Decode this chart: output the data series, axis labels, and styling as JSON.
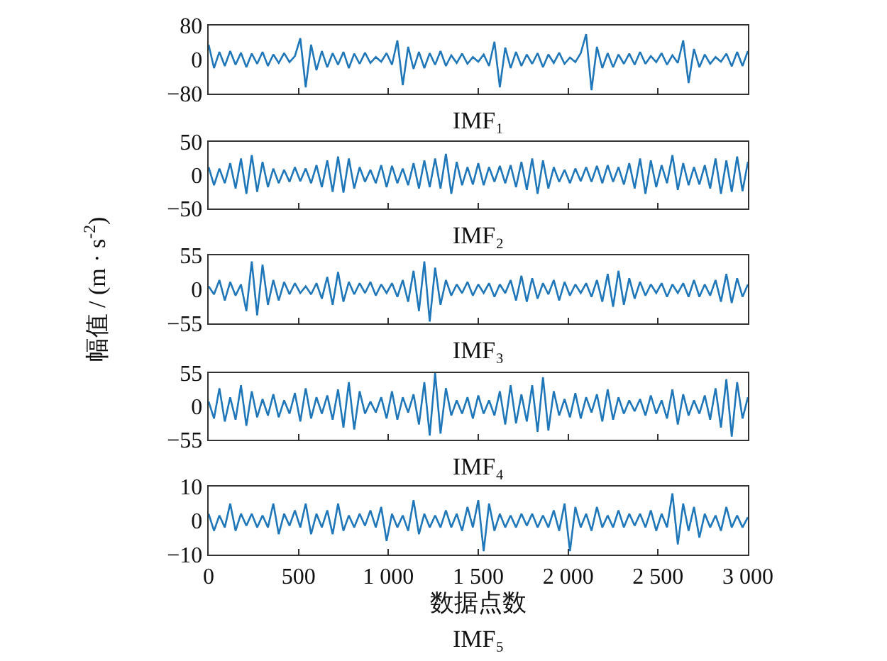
{
  "chart_data": [
    {
      "type": "line",
      "xlabel": "IMF₁",
      "ylabel": null,
      "color": "#1f77b9",
      "tick_labels": "y",
      "xlim": [
        0,
        3000
      ],
      "ylim": [
        -80,
        80
      ],
      "yticks": [
        -80,
        0,
        80
      ],
      "xticks": [
        {
          "value": 0,
          "label": null
        },
        {
          "value": 500,
          "label": null
        },
        {
          "value": 1000,
          "label": null
        },
        {
          "value": 1500,
          "label": null
        },
        {
          "value": 2000,
          "label": null
        },
        {
          "value": 2500,
          "label": null
        },
        {
          "value": 3000,
          "label": null
        }
      ],
      "x": [
        0,
        30,
        60,
        90,
        120,
        150,
        180,
        210,
        240,
        270,
        300,
        330,
        360,
        390,
        420,
        450,
        480,
        510,
        540,
        570,
        600,
        630,
        660,
        690,
        720,
        750,
        780,
        810,
        840,
        870,
        900,
        930,
        960,
        990,
        1020,
        1050,
        1080,
        1110,
        1140,
        1170,
        1200,
        1230,
        1260,
        1290,
        1320,
        1350,
        1380,
        1410,
        1440,
        1470,
        1500,
        1530,
        1560,
        1590,
        1620,
        1650,
        1680,
        1710,
        1740,
        1770,
        1800,
        1830,
        1860,
        1890,
        1920,
        1950,
        1980,
        2010,
        2040,
        2070,
        2100,
        2130,
        2160,
        2190,
        2220,
        2250,
        2280,
        2310,
        2340,
        2370,
        2400,
        2430,
        2460,
        2490,
        2520,
        2550,
        2580,
        2610,
        2640,
        2670,
        2700,
        2730,
        2760,
        2790,
        2820,
        2850,
        2880,
        2910,
        2940,
        2970,
        3000
      ],
      "values": [
        35,
        -20,
        18,
        -15,
        20,
        -12,
        16,
        -18,
        14,
        -10,
        18,
        -15,
        12,
        -8,
        15,
        -6,
        8,
        50,
        -65,
        35,
        -25,
        20,
        -18,
        15,
        -12,
        18,
        -20,
        14,
        -10,
        16,
        -8,
        6,
        -5,
        15,
        -12,
        45,
        -60,
        30,
        -22,
        18,
        -20,
        15,
        -12,
        20,
        -15,
        10,
        -8,
        14,
        -10,
        6,
        -5,
        12,
        -15,
        42,
        -65,
        28,
        -20,
        18,
        -15,
        12,
        -10,
        15,
        -18,
        12,
        -8,
        16,
        -10,
        5,
        -6,
        15,
        60,
        -72,
        30,
        -20,
        15,
        -18,
        12,
        -10,
        14,
        -12,
        18,
        -10,
        8,
        -6,
        15,
        -12,
        10,
        -8,
        45,
        -55,
        25,
        -18,
        12,
        -10,
        6,
        -5,
        14,
        -16,
        18,
        -15,
        20
      ]
    },
    {
      "type": "line",
      "xlabel": "IMF₂",
      "color": "#1f77b9",
      "tick_labels": "y",
      "xlim": [
        0,
        3000
      ],
      "ylim": [
        -50,
        50
      ],
      "yticks": [
        -50,
        0,
        50
      ],
      "xticks": [
        {
          "value": 0,
          "label": null
        },
        {
          "value": 500,
          "label": null
        },
        {
          "value": 1000,
          "label": null
        },
        {
          "value": 1500,
          "label": null
        },
        {
          "value": 2000,
          "label": null
        },
        {
          "value": 2500,
          "label": null
        },
        {
          "value": 3000,
          "label": null
        }
      ],
      "x": [
        0,
        30,
        60,
        90,
        120,
        150,
        180,
        210,
        240,
        270,
        300,
        330,
        360,
        390,
        420,
        450,
        480,
        510,
        540,
        570,
        600,
        630,
        660,
        690,
        720,
        750,
        780,
        810,
        840,
        870,
        900,
        930,
        960,
        990,
        1020,
        1050,
        1080,
        1110,
        1140,
        1170,
        1200,
        1230,
        1260,
        1290,
        1320,
        1350,
        1380,
        1410,
        1440,
        1470,
        1500,
        1530,
        1560,
        1590,
        1620,
        1650,
        1680,
        1710,
        1740,
        1770,
        1800,
        1830,
        1860,
        1890,
        1920,
        1950,
        1980,
        2010,
        2040,
        2070,
        2100,
        2130,
        2160,
        2190,
        2220,
        2250,
        2280,
        2310,
        2340,
        2370,
        2400,
        2430,
        2460,
        2490,
        2520,
        2550,
        2580,
        2610,
        2640,
        2670,
        2700,
        2730,
        2760,
        2790,
        2820,
        2850,
        2880,
        2910,
        2940,
        2970,
        3000
      ],
      "values": [
        12,
        -15,
        10,
        -12,
        18,
        -20,
        25,
        -28,
        30,
        -25,
        20,
        -18,
        10,
        -12,
        8,
        -10,
        12,
        -9,
        10,
        -12,
        15,
        -18,
        22,
        -25,
        28,
        -26,
        25,
        -20,
        12,
        -10,
        8,
        -12,
        15,
        -18,
        14,
        -12,
        10,
        -15,
        18,
        -20,
        22,
        -18,
        25,
        -20,
        32,
        -28,
        20,
        -15,
        12,
        -14,
        18,
        -15,
        12,
        -10,
        14,
        -12,
        15,
        -18,
        20,
        -22,
        25,
        -28,
        22,
        -20,
        12,
        -10,
        8,
        -12,
        10,
        -9,
        12,
        -10,
        14,
        -12,
        15,
        -10,
        12,
        -14,
        18,
        -20,
        25,
        -28,
        22,
        -18,
        15,
        -12,
        30,
        -22,
        18,
        -15,
        12,
        -14,
        15,
        -20,
        25,
        -28,
        22,
        -25,
        28,
        -24,
        20
      ]
    },
    {
      "type": "line",
      "xlabel": "IMF₃",
      "ylabel": "幅值 / (m · s$^{-2}$)",
      "color": "#1f77b9",
      "tick_labels": "y",
      "xlim": [
        0,
        3000
      ],
      "ylim": [
        -55,
        55
      ],
      "yticks": [
        -55,
        0,
        55
      ],
      "xticks": [
        {
          "value": 0,
          "label": null
        },
        {
          "value": 500,
          "label": null
        },
        {
          "value": 1000,
          "label": null
        },
        {
          "value": 1500,
          "label": null
        },
        {
          "value": 2000,
          "label": null
        },
        {
          "value": 2500,
          "label": null
        },
        {
          "value": 3000,
          "label": null
        }
      ],
      "x": [
        0,
        30,
        60,
        90,
        120,
        150,
        180,
        210,
        240,
        270,
        300,
        330,
        360,
        390,
        420,
        450,
        480,
        510,
        540,
        570,
        600,
        630,
        660,
        690,
        720,
        750,
        780,
        810,
        840,
        870,
        900,
        930,
        960,
        990,
        1020,
        1050,
        1080,
        1110,
        1140,
        1170,
        1200,
        1230,
        1260,
        1290,
        1320,
        1350,
        1380,
        1410,
        1440,
        1470,
        1500,
        1530,
        1560,
        1590,
        1620,
        1650,
        1680,
        1710,
        1740,
        1770,
        1800,
        1830,
        1860,
        1890,
        1920,
        1950,
        1980,
        2010,
        2040,
        2070,
        2100,
        2130,
        2160,
        2190,
        2220,
        2250,
        2280,
        2310,
        2340,
        2370,
        2400,
        2430,
        2460,
        2490,
        2520,
        2550,
        2580,
        2610,
        2640,
        2670,
        2700,
        2730,
        2760,
        2790,
        2820,
        2850,
        2880,
        2910,
        2940,
        2970,
        3000
      ],
      "values": [
        5,
        -8,
        15,
        -18,
        12,
        -10,
        8,
        -35,
        45,
        -42,
        40,
        -25,
        15,
        -18,
        12,
        -8,
        10,
        -6,
        5,
        -8,
        10,
        -15,
        20,
        -25,
        28,
        -20,
        12,
        -8,
        10,
        -6,
        12,
        -10,
        8,
        -6,
        10,
        -12,
        15,
        -20,
        30,
        -35,
        45,
        -52,
        35,
        -25,
        15,
        -10,
        8,
        -6,
        12,
        -10,
        8,
        -6,
        10,
        -12,
        8,
        -6,
        15,
        -18,
        22,
        -20,
        18,
        -15,
        10,
        -8,
        15,
        -18,
        12,
        -10,
        8,
        -6,
        10,
        -12,
        15,
        -20,
        25,
        -28,
        30,
        -25,
        18,
        -15,
        12,
        -10,
        8,
        -6,
        10,
        -12,
        8,
        -6,
        10,
        -12,
        15,
        -12,
        8,
        -10,
        15,
        -20,
        25,
        -22,
        18,
        -12,
        8
      ]
    },
    {
      "type": "line",
      "xlabel": "IMF₄",
      "color": "#1f77b9",
      "tick_labels": "y",
      "xlim": [
        0,
        3000
      ],
      "ylim": [
        -55,
        55
      ],
      "yticks": [
        -55,
        0,
        55
      ],
      "xticks": [
        {
          "value": 0,
          "label": null
        },
        {
          "value": 500,
          "label": null
        },
        {
          "value": 1000,
          "label": null
        },
        {
          "value": 1500,
          "label": null
        },
        {
          "value": 2000,
          "label": null
        },
        {
          "value": 2500,
          "label": null
        },
        {
          "value": 3000,
          "label": null
        }
      ],
      "x": [
        0,
        30,
        60,
        90,
        120,
        150,
        180,
        210,
        240,
        270,
        300,
        330,
        360,
        390,
        420,
        450,
        480,
        510,
        540,
        570,
        600,
        630,
        660,
        690,
        720,
        750,
        780,
        810,
        840,
        870,
        900,
        930,
        960,
        990,
        1020,
        1050,
        1080,
        1110,
        1140,
        1170,
        1200,
        1230,
        1260,
        1290,
        1320,
        1350,
        1380,
        1410,
        1440,
        1470,
        1500,
        1530,
        1560,
        1590,
        1620,
        1650,
        1680,
        1710,
        1740,
        1770,
        1800,
        1830,
        1860,
        1890,
        1920,
        1950,
        1980,
        2010,
        2040,
        2070,
        2100,
        2130,
        2160,
        2190,
        2220,
        2250,
        2280,
        2310,
        2340,
        2370,
        2400,
        2430,
        2460,
        2490,
        2520,
        2550,
        2580,
        2610,
        2640,
        2670,
        2700,
        2730,
        2760,
        2790,
        2820,
        2850,
        2880,
        2910,
        2940,
        2970,
        3000
      ],
      "values": [
        8,
        -20,
        30,
        -25,
        15,
        -22,
        35,
        -32,
        25,
        -18,
        12,
        -15,
        20,
        -18,
        10,
        -12,
        22,
        -25,
        30,
        -20,
        15,
        -12,
        18,
        -22,
        28,
        -35,
        40,
        -38,
        25,
        -12,
        8,
        -10,
        15,
        -20,
        25,
        -22,
        15,
        -10,
        20,
        -30,
        40,
        -48,
        55,
        -45,
        30,
        -15,
        10,
        -12,
        15,
        -20,
        18,
        -12,
        10,
        -15,
        25,
        -30,
        35,
        -28,
        20,
        -25,
        35,
        -42,
        48,
        -40,
        25,
        -15,
        12,
        -18,
        22,
        -20,
        15,
        -10,
        20,
        -25,
        28,
        -22,
        15,
        -12,
        10,
        -8,
        12,
        -15,
        18,
        -12,
        10,
        -20,
        28,
        -30,
        20,
        -15,
        10,
        -12,
        18,
        -22,
        30,
        -35,
        45,
        -50,
        40,
        -20,
        15
      ]
    },
    {
      "type": "line",
      "xlabel": "数据点数",
      "color": "#1f77b9",
      "annotations": [
        "IMF₅"
      ],
      "xlim": [
        0,
        3000
      ],
      "ylim": [
        -10,
        10
      ],
      "yticks": [
        -10,
        0,
        10
      ],
      "xticks": [
        0,
        500,
        {
          "value": 1000,
          "label": "1 000"
        },
        {
          "value": 1500,
          "label": "1 500"
        },
        {
          "value": 2000,
          "label": "2 000"
        },
        {
          "value": 2500,
          "label": "2 500"
        },
        {
          "value": 3000,
          "label": "3 000"
        }
      ],
      "x": [
        0,
        30,
        60,
        90,
        120,
        150,
        180,
        210,
        240,
        270,
        300,
        330,
        360,
        390,
        420,
        450,
        480,
        510,
        540,
        570,
        600,
        630,
        660,
        690,
        720,
        750,
        780,
        810,
        840,
        870,
        900,
        930,
        960,
        990,
        1020,
        1050,
        1080,
        1110,
        1140,
        1170,
        1200,
        1230,
        1260,
        1290,
        1320,
        1350,
        1380,
        1410,
        1440,
        1470,
        1500,
        1530,
        1560,
        1590,
        1620,
        1650,
        1680,
        1710,
        1740,
        1770,
        1800,
        1830,
        1860,
        1890,
        1920,
        1950,
        1980,
        2010,
        2040,
        2070,
        2100,
        2130,
        2160,
        2190,
        2220,
        2250,
        2280,
        2310,
        2340,
        2370,
        2400,
        2430,
        2460,
        2490,
        2520,
        2550,
        2580,
        2610,
        2640,
        2670,
        2700,
        2730,
        2760,
        2790,
        2820,
        2850,
        2880,
        2910,
        2940,
        2970,
        3000
      ],
      "values": [
        2,
        -3,
        1.5,
        -2,
        5,
        -3,
        2,
        -1.5,
        2,
        -2,
        1.5,
        -2,
        5,
        -4,
        2,
        -1.5,
        3,
        -2,
        5,
        -4,
        2,
        -2,
        3,
        -4,
        5,
        -3,
        1.5,
        -2,
        2,
        -1.5,
        3,
        -2,
        4,
        -6,
        2,
        -2,
        1.5,
        -3,
        6,
        -4,
        2,
        -2,
        1.5,
        -2,
        3,
        -2,
        2,
        -3,
        4,
        -2,
        6,
        -9,
        5,
        -3,
        2,
        -2,
        1.5,
        -2,
        2,
        -1.5,
        2,
        -2,
        1.5,
        -2,
        3,
        -3,
        5,
        -9,
        4,
        -2,
        2,
        -3,
        4,
        -2,
        1.5,
        -2,
        3,
        -2,
        2,
        -1.5,
        2,
        -2,
        3,
        -3,
        2,
        -2,
        8,
        -7,
        5,
        -3,
        4,
        -5,
        2,
        -2,
        1.5,
        -3,
        4,
        -2,
        1.5,
        -2,
        1
      ]
    }
  ]
}
